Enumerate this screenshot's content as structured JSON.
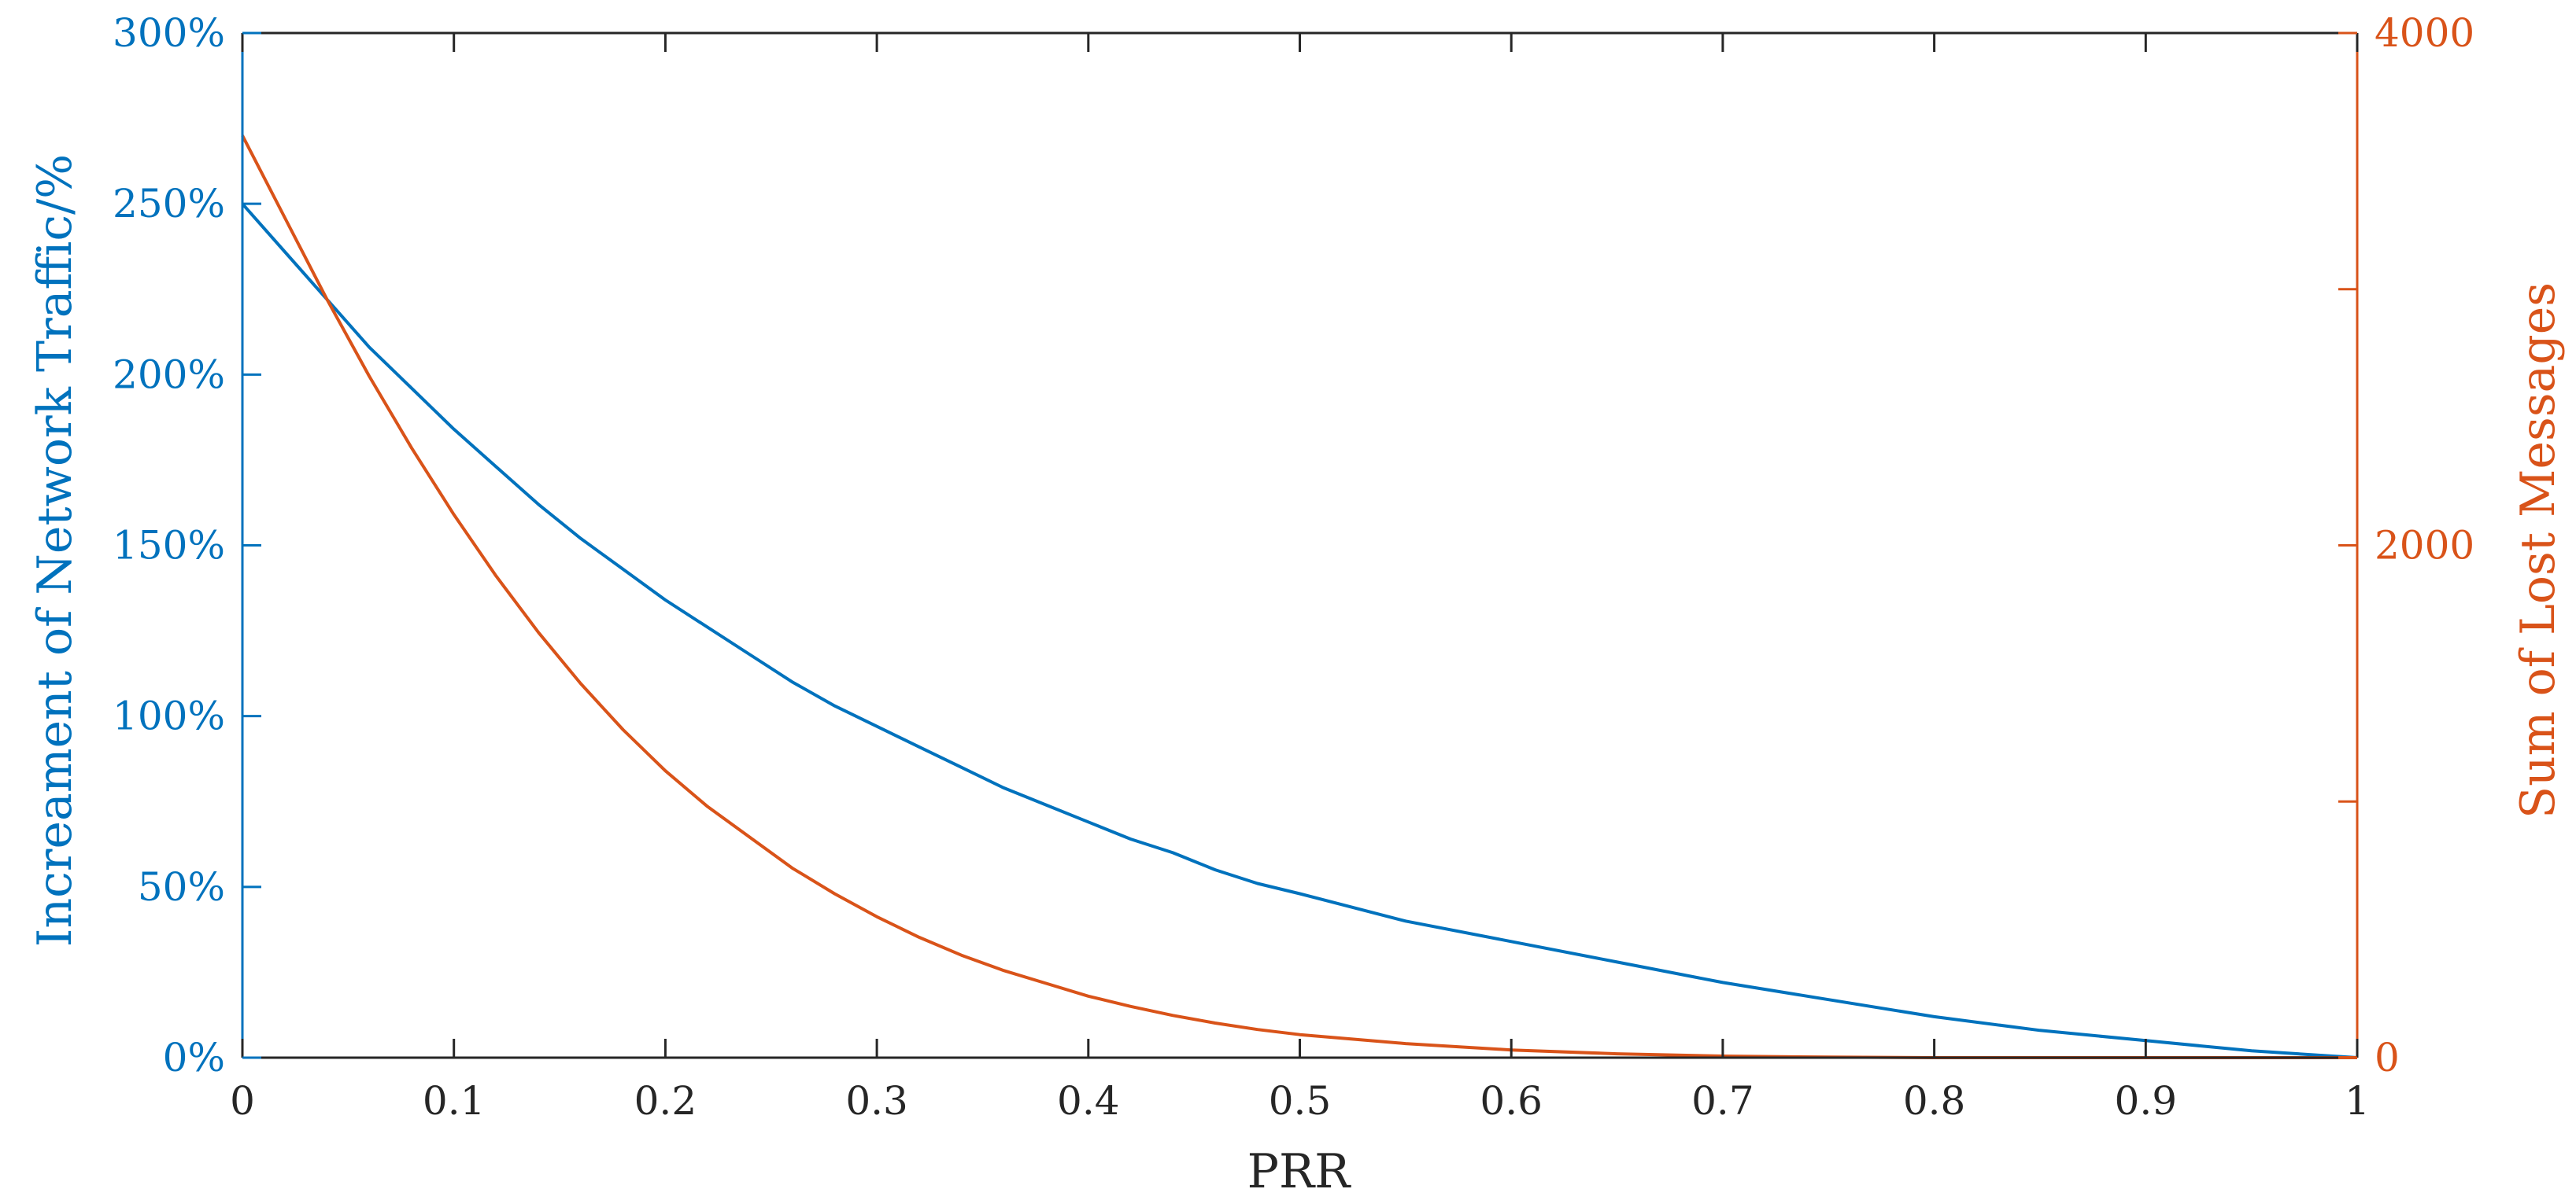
{
  "chart_data": {
    "type": "line",
    "xlabel": "PRR",
    "ylabel_left": "Increament of Network Traffic/%",
    "ylabel_right": "Sum of Lost Messages",
    "xlim": [
      0,
      1
    ],
    "ylim_left": [
      0,
      300
    ],
    "ylim_right": [
      0,
      4000
    ],
    "x_ticks": [
      "0",
      "0.1",
      "0.2",
      "0.3",
      "0.4",
      "0.5",
      "0.6",
      "0.7",
      "0.8",
      "0.9",
      "1"
    ],
    "y_ticks_left": [
      "0%",
      "50%",
      "100%",
      "150%",
      "200%",
      "250%",
      "300%"
    ],
    "y_ticks_right": [
      "0",
      "2000",
      "4000"
    ],
    "grid": false,
    "colors": {
      "left_axis": "#0072BD",
      "right_axis": "#D95319",
      "frame": "#262626"
    },
    "series": [
      {
        "axis": "left",
        "color": "#0072BD",
        "x": [
          0,
          0.02,
          0.04,
          0.06,
          0.08,
          0.1,
          0.12,
          0.14,
          0.16,
          0.18,
          0.2,
          0.22,
          0.24,
          0.26,
          0.28,
          0.3,
          0.32,
          0.34,
          0.36,
          0.38,
          0.4,
          0.42,
          0.44,
          0.46,
          0.48,
          0.5,
          0.55,
          0.6,
          0.65,
          0.7,
          0.75,
          0.8,
          0.85,
          0.9,
          0.95,
          1.0
        ],
        "values": [
          250,
          236,
          222,
          208,
          196,
          184,
          173,
          162,
          152,
          143,
          134,
          126,
          118,
          110,
          103,
          97,
          91,
          85,
          79,
          74,
          69,
          64,
          60,
          55,
          51,
          48,
          40,
          34,
          28,
          22,
          17,
          12,
          8,
          5,
          2,
          0
        ]
      },
      {
        "axis": "right",
        "color": "#D95319",
        "x": [
          0,
          0.02,
          0.04,
          0.06,
          0.08,
          0.1,
          0.12,
          0.14,
          0.16,
          0.18,
          0.2,
          0.22,
          0.24,
          0.26,
          0.28,
          0.3,
          0.32,
          0.34,
          0.36,
          0.38,
          0.4,
          0.42,
          0.44,
          0.46,
          0.48,
          0.5,
          0.55,
          0.6,
          0.65,
          0.7,
          0.75,
          0.8,
          0.85,
          0.9,
          0.95,
          1.0
        ],
        "values": [
          3600,
          3280,
          2960,
          2660,
          2380,
          2120,
          1880,
          1660,
          1460,
          1280,
          1120,
          980,
          860,
          740,
          640,
          550,
          470,
          400,
          340,
          290,
          240,
          200,
          165,
          135,
          110,
          90,
          55,
          30,
          15,
          6,
          2,
          0,
          0,
          0,
          0,
          0
        ]
      }
    ]
  }
}
